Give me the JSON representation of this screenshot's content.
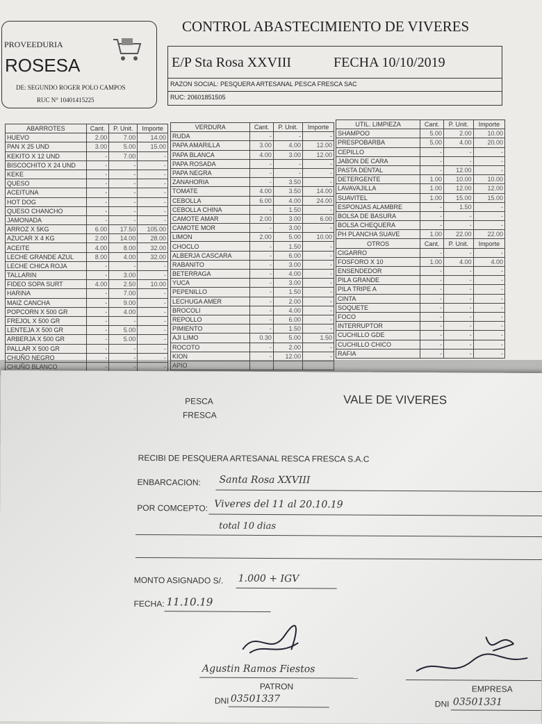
{
  "header": {
    "proveeduria": "PROVEEDURIA",
    "name": "ROSESA",
    "de": "DE: SEGUNDO ROGER POLO CAMPOS",
    "ruc": "RUC N° 10401415225",
    "title": "CONTROL ABASTECIMIENTO DE VIVERES",
    "ep": "E/P Sta Rosa XXVIII",
    "fecha": "FECHA 10/10/2019",
    "razon": "RAZON SOCIAL:  PESQUERA ARTESANAL PESCA FRESCA SAC",
    "ruc2": "RUC: 20601851505"
  },
  "columns": [
    "Cant.",
    "P. Unit.",
    "Importe"
  ],
  "abarrotes": {
    "title": "ABARROTES",
    "rows": [
      [
        "HUEVO",
        "2.00",
        "7.00",
        "14.00"
      ],
      [
        "PAN X 25 UND",
        "3.00",
        "5.00",
        "15.00"
      ],
      [
        "KEKITO X 12 UND",
        "-",
        "7.00",
        "-"
      ],
      [
        "BISCOCHITO X 24 UND",
        "-",
        "-",
        "-"
      ],
      [
        "KEKE",
        "-",
        "-",
        "-"
      ],
      [
        "QUESO",
        "-",
        "-",
        "-"
      ],
      [
        "ACEITUNA",
        "-",
        "-",
        "-"
      ],
      [
        "HOT DOG",
        "-",
        "-",
        "-"
      ],
      [
        "QUESO CHANCHO",
        "-",
        "-",
        "-"
      ],
      [
        "JAMONADA",
        "-",
        "-",
        "-"
      ],
      [
        "ARROZ X 5KG",
        "6.00",
        "17.50",
        "105.00"
      ],
      [
        "AZUCAR X 4 KG",
        "2.00",
        "14.00",
        "28.00"
      ],
      [
        "ACEITE",
        "4.00",
        "8.00",
        "32.00"
      ],
      [
        "LECHE GRANDE AZUL",
        "8.00",
        "4.00",
        "32.00"
      ],
      [
        "LECHE CHICA ROJA",
        "-",
        "-",
        "-"
      ],
      [
        "TALLARIN",
        "-",
        "3.00",
        "-"
      ],
      [
        "FIDEO SOPA SURT",
        "4.00",
        "2.50",
        "10.00"
      ],
      [
        "HARINA",
        "-",
        "7.00",
        "-"
      ],
      [
        "MAIZ CANCHA",
        "-",
        "9.00",
        "-"
      ],
      [
        "POPCORN X 500 GR",
        "-",
        "4.00",
        "-"
      ],
      [
        "FREJOL X 500 GR",
        "-",
        "-",
        "-"
      ],
      [
        "LENTEJA X 500 GR",
        "-",
        "5.00",
        "-"
      ],
      [
        "ARBERJA X 500 GR",
        "-",
        "5.00",
        "-"
      ],
      [
        "PALLAR X 500 GR",
        "-",
        "-",
        "-"
      ],
      [
        "CHUÑO NEGRO",
        "-",
        "-",
        "-"
      ],
      [
        "CHUÑO BLANCO",
        "-",
        "-",
        "-"
      ]
    ]
  },
  "verdura": {
    "title": "VERDURA",
    "rows": [
      [
        "RUDA",
        "-",
        "-",
        "-"
      ],
      [
        "PAPA AMARILLA",
        "3.00",
        "4.00",
        "12.00"
      ],
      [
        "PAPA BLANCA",
        "4.00",
        "3.00",
        "12.00"
      ],
      [
        "PAPA ROSADA",
        "-",
        "-",
        "-"
      ],
      [
        "PAPA NEGRA",
        "-",
        "-",
        "-"
      ],
      [
        "ZANAHORIA",
        "-",
        "3.50",
        "-"
      ],
      [
        "TOMATE",
        "4.00",
        "3.50",
        "14.00"
      ],
      [
        "CEBOLLA",
        "6.00",
        "4.00",
        "24.00"
      ],
      [
        "CEBOLLA CHINA",
        "-",
        "1.50",
        "-"
      ],
      [
        "CAMOTE AMAR",
        "2.00",
        "3.00",
        "6.00"
      ],
      [
        "CAMOTE MOR",
        "-",
        "3.00",
        "-"
      ],
      [
        "LIMON",
        "2.00",
        "5.00",
        "10.00"
      ],
      [
        "CHOCLO",
        "-",
        "1.50",
        "-"
      ],
      [
        "ALBERJA CASCARA",
        "-",
        "6.00",
        "-"
      ],
      [
        "RABANITO",
        "-",
        "3.00",
        "-"
      ],
      [
        "BETERRAGA",
        "-",
        "4.00",
        "-"
      ],
      [
        "YUCA",
        "-",
        "3.00",
        "-"
      ],
      [
        "PEPENILLO",
        "-",
        "1.50",
        "-"
      ],
      [
        "LECHUGA AMER",
        "-",
        "2.00",
        "-"
      ],
      [
        "BROCOLI",
        "-",
        "4.00",
        "-"
      ],
      [
        "REPOLLO",
        "-",
        "6.00",
        "-"
      ],
      [
        "PIMIENTO",
        "-",
        "1.50",
        "-"
      ],
      [
        "AJI LIMO",
        "0.30",
        "5.00",
        "1.50"
      ],
      [
        "ROCOTO",
        "-",
        "2.00",
        "-"
      ],
      [
        "KION",
        "-",
        "12.00",
        "-"
      ],
      [
        "APIO",
        "",
        "",
        ""
      ]
    ]
  },
  "limpieza": {
    "title": "UTIL. LIMPIEZA",
    "rows": [
      [
        "SHAMPOO",
        "5.00",
        "2.00",
        "10.00"
      ],
      [
        "PRESPOBARBA",
        "5.00",
        "4.00",
        "20.00"
      ],
      [
        "CEPILLO",
        "-",
        "-",
        "-"
      ],
      [
        "JABON DE CARA",
        "-",
        "-",
        "-"
      ],
      [
        "PASTA DENTAL",
        "-",
        "12.00",
        "-"
      ],
      [
        "DETERGENTE",
        "1.00",
        "10.00",
        "10.00"
      ],
      [
        "LAVAVAJILLA",
        "1.00",
        "12.00",
        "12.00"
      ],
      [
        "SUAVITEL",
        "1.00",
        "15.00",
        "15.00"
      ],
      [
        "ESPONJAS ALAMBRE",
        "-",
        "1.50",
        "-"
      ],
      [
        "BOLSA DE BASURA",
        "-",
        "-",
        "-"
      ],
      [
        "BOLSA CHEQUERA",
        "-",
        "-",
        "-"
      ],
      [
        "PH PLANCHA SUAVE",
        "1.00",
        "22.00",
        "22.00"
      ]
    ]
  },
  "otros": {
    "title": "OTROS",
    "rows": [
      [
        "CIGARRO",
        "-",
        "-",
        "-"
      ],
      [
        "FOSFORO X 10",
        "1.00",
        "4.00",
        "4.00"
      ],
      [
        "ENSENDEDOR",
        "-",
        "-",
        "-"
      ],
      [
        "PILA GRANDE",
        "-",
        "-",
        "-"
      ],
      [
        "PILA TRIPE A",
        "-",
        "-",
        "-"
      ],
      [
        "CINTA",
        "-",
        "-",
        "-"
      ],
      [
        "SOQUETE",
        "-",
        "-",
        "-"
      ],
      [
        "FOCO",
        "-",
        "-",
        "-"
      ],
      [
        "INTERRUPTOR",
        "-",
        "-",
        "-"
      ],
      [
        "CUCHILLO GDE",
        "-",
        "-",
        "-"
      ],
      [
        "CUCHILLO CHICO",
        "-",
        "-",
        "-"
      ],
      [
        "RAFIA",
        "-",
        "-",
        "-"
      ]
    ]
  },
  "vale": {
    "pesca": "PESCA",
    "fresca": "FRESCA",
    "title": "VALE DE VIVERES",
    "recibi": "RECIBI DE PESQUERA ARTESANAL RESCA FRESCA S.A.C",
    "embarcacion_label": "ENBARCACION:",
    "embarcacion": "Santa Rosa XXVIII",
    "concepto_label": "POR COMCEPTO:",
    "concepto1": "Viveres del 11 al 20.10.19",
    "concepto2": "total 10 dias",
    "monto_label": "MONTO ASIGNADO S/.",
    "monto": "1.000 + IGV",
    "fecha_label": "FECHA:",
    "fecha": "11.10.19",
    "patron_name": "Agustin Ramos Fiestos",
    "patron": "PATRON",
    "dni_label": "DNI",
    "patron_dni": "03501337",
    "empresa": "EMPRESA",
    "empresa_dni": "03501331"
  }
}
